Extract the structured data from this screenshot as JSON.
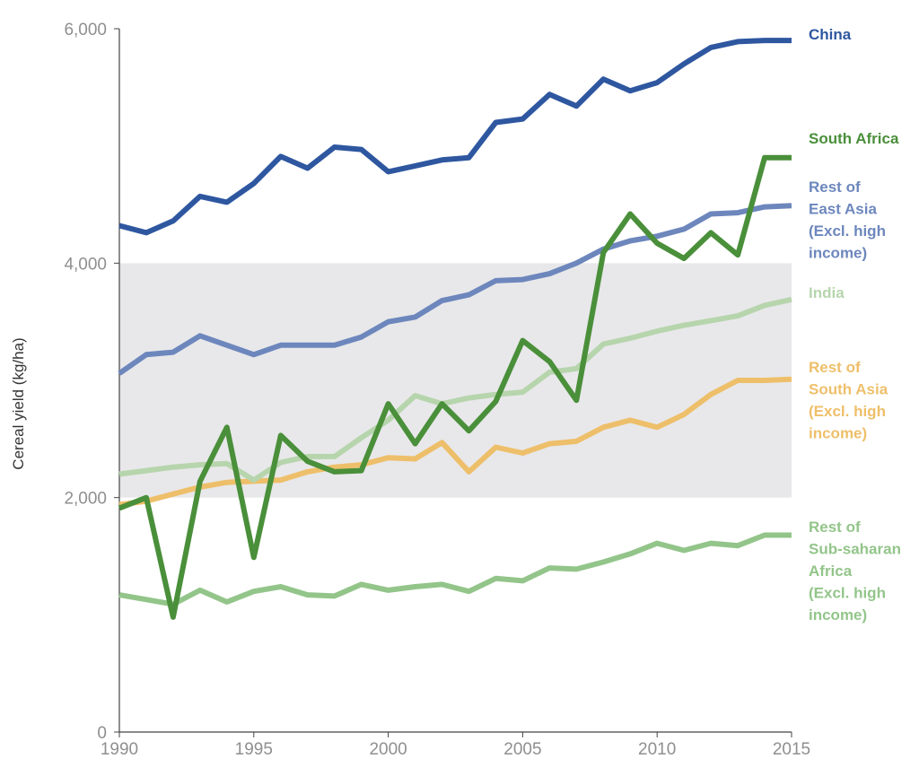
{
  "chart_data": {
    "type": "line",
    "title": "",
    "xlabel": "",
    "ylabel": "Cereal yield (kg/ha)",
    "xlim": [
      1990,
      2015
    ],
    "ylim": [
      0,
      6000
    ],
    "x_ticks": [
      "1990",
      "1995",
      "2000",
      "2005",
      "2010",
      "2015"
    ],
    "y_ticks": [
      "0",
      "2,000",
      "4,000",
      "6,000"
    ],
    "x": [
      1990,
      1991,
      1992,
      1993,
      1994,
      1995,
      1996,
      1997,
      1998,
      1999,
      2000,
      2001,
      2002,
      2003,
      2004,
      2005,
      2006,
      2007,
      2008,
      2009,
      2010,
      2011,
      2012,
      2013,
      2014,
      2015
    ],
    "grid": false,
    "background_bands": [
      [
        0,
        2000,
        "#ffffff"
      ],
      [
        2000,
        4000,
        "#e8e8ea"
      ],
      [
        4000,
        6000,
        "#ffffff"
      ]
    ],
    "series": [
      {
        "name_lines": [
          "Rest of",
          "Sub-saharan",
          "Africa",
          "(Excl. high",
          "income)"
        ],
        "color": "#93c58a",
        "values": [
          1170,
          1130,
          1090,
          1210,
          1110,
          1200,
          1240,
          1170,
          1160,
          1260,
          1210,
          1240,
          1260,
          1200,
          1310,
          1290,
          1400,
          1390,
          1450,
          1520,
          1610,
          1550,
          1610,
          1590,
          1680,
          1680
        ]
      },
      {
        "name_lines": [
          "Rest of",
          "South Asia",
          "(Excl. high",
          "income)"
        ],
        "color": "#eebf6a",
        "values": [
          1940,
          1970,
          2030,
          2090,
          2130,
          2140,
          2150,
          2220,
          2260,
          2280,
          2340,
          2330,
          2470,
          2220,
          2430,
          2380,
          2460,
          2480,
          2600,
          2660,
          2600,
          2710,
          2880,
          3000,
          3000,
          3010
        ]
      },
      {
        "name_lines": [
          "India"
        ],
        "color": "#b7d5ad",
        "values": [
          2200,
          2230,
          2260,
          2280,
          2290,
          2150,
          2300,
          2350,
          2350,
          2510,
          2660,
          2870,
          2800,
          2850,
          2880,
          2900,
          3070,
          3100,
          3310,
          3360,
          3420,
          3470,
          3510,
          3550,
          3640,
          3690
        ]
      },
      {
        "name_lines": [
          "Rest of",
          "East Asia",
          "(Excl. high",
          "income)"
        ],
        "color": "#6d87bd",
        "values": [
          3060,
          3220,
          3240,
          3380,
          3300,
          3220,
          3300,
          3300,
          3300,
          3370,
          3500,
          3540,
          3680,
          3730,
          3850,
          3860,
          3910,
          4000,
          4120,
          4190,
          4230,
          4290,
          4420,
          4430,
          4480,
          4490
        ]
      },
      {
        "name_lines": [
          "South Africa"
        ],
        "color": "#4a8f3a",
        "values": [
          1910,
          2000,
          980,
          2140,
          2600,
          1490,
          2530,
          2310,
          2220,
          2230,
          2800,
          2460,
          2800,
          2570,
          2820,
          3340,
          3160,
          2830,
          4090,
          4420,
          4170,
          4040,
          4260,
          4070,
          4900,
          4900
        ]
      },
      {
        "name_lines": [
          "China"
        ],
        "color": "#2e57a0",
        "values": [
          4320,
          4260,
          4360,
          4570,
          4520,
          4680,
          4910,
          4810,
          4990,
          4970,
          4780,
          4830,
          4880,
          4900,
          5200,
          5230,
          5440,
          5340,
          5570,
          5470,
          5540,
          5700,
          5840,
          5890,
          5900,
          5900
        ]
      }
    ]
  }
}
